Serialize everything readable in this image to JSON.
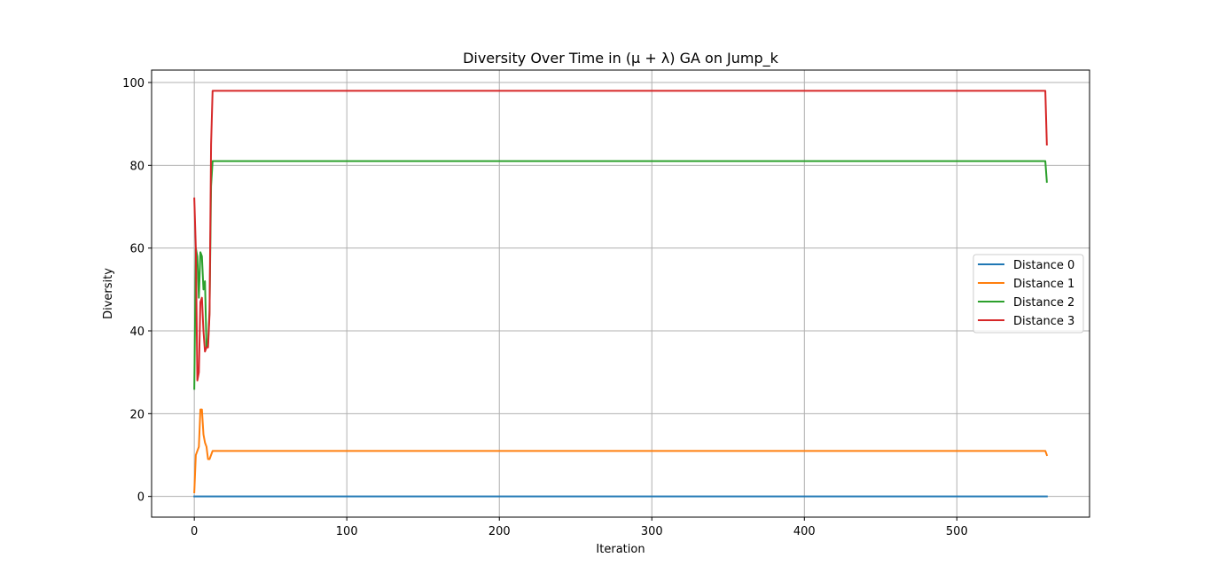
{
  "chart_data": {
    "type": "line",
    "title": "Diversity Over Time in (μ + λ) GA on Jump_k",
    "xlabel": "Iteration",
    "ylabel": "Diversity",
    "xlim": [
      -28,
      587
    ],
    "ylim": [
      -5,
      103
    ],
    "xticks": [
      0,
      100,
      200,
      300,
      400,
      500
    ],
    "yticks": [
      0,
      20,
      40,
      60,
      80,
      100
    ],
    "grid": true,
    "legend_position": "center-right",
    "series": [
      {
        "name": "Distance 0",
        "color": "#1f77b4",
        "points": [
          [
            0,
            0
          ],
          [
            559,
            0
          ]
        ]
      },
      {
        "name": "Distance 1",
        "color": "#ff7f0e",
        "points": [
          [
            0,
            1
          ],
          [
            1,
            10
          ],
          [
            2,
            11
          ],
          [
            3,
            12
          ],
          [
            4,
            21
          ],
          [
            5,
            21
          ],
          [
            6,
            15
          ],
          [
            7,
            13
          ],
          [
            8,
            12
          ],
          [
            9,
            9
          ],
          [
            10,
            9
          ],
          [
            11,
            10
          ],
          [
            12,
            11
          ],
          [
            13,
            11
          ],
          [
            557,
            11
          ],
          [
            558,
            11
          ],
          [
            559,
            10
          ]
        ]
      },
      {
        "name": "Distance 2",
        "color": "#2ca02c",
        "points": [
          [
            0,
            26
          ],
          [
            1,
            60
          ],
          [
            2,
            58
          ],
          [
            3,
            48
          ],
          [
            4,
            59
          ],
          [
            5,
            58
          ],
          [
            6,
            50
          ],
          [
            7,
            52
          ],
          [
            8,
            36
          ],
          [
            9,
            37
          ],
          [
            10,
            45
          ],
          [
            11,
            75
          ],
          [
            12,
            81
          ],
          [
            13,
            81
          ],
          [
            557,
            81
          ],
          [
            558,
            81
          ],
          [
            559,
            76
          ]
        ]
      },
      {
        "name": "Distance 3",
        "color": "#d62728",
        "points": [
          [
            0,
            72
          ],
          [
            1,
            60
          ],
          [
            2,
            28
          ],
          [
            3,
            30
          ],
          [
            4,
            47
          ],
          [
            5,
            48
          ],
          [
            6,
            40
          ],
          [
            7,
            35
          ],
          [
            8,
            36
          ],
          [
            9,
            36
          ],
          [
            10,
            44
          ],
          [
            11,
            85
          ],
          [
            12,
            98
          ],
          [
            13,
            98
          ],
          [
            557,
            98
          ],
          [
            558,
            98
          ],
          [
            559,
            85
          ]
        ]
      }
    ]
  }
}
